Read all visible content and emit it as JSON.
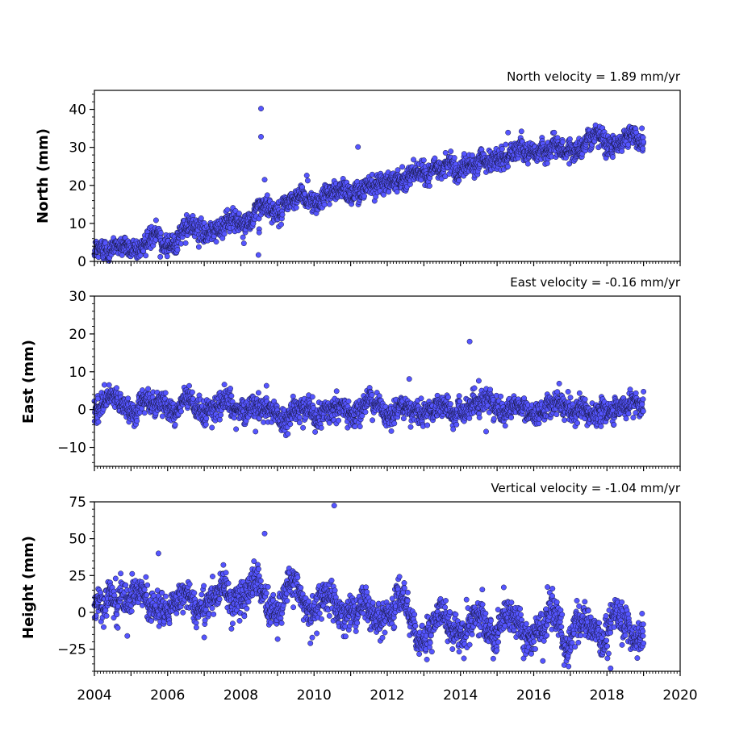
{
  "colors": {
    "marker": "#5555ff",
    "marker_edge": "#15153a"
  },
  "chart_data": [
    {
      "type": "scatter",
      "panel": "north",
      "velocity_label": "North velocity = 1.89 mm/yr",
      "ylabel": "North (mm)",
      "xlim": [
        2004,
        2020
      ],
      "ylim": [
        0,
        45
      ],
      "yticks": [
        0,
        10,
        20,
        30,
        40
      ],
      "xtick_labels_shown": false,
      "x_range": [
        2004.0,
        2019.0
      ],
      "trend": [
        [
          2004.0,
          3
        ],
        [
          2006.0,
          6
        ],
        [
          2008.0,
          11
        ],
        [
          2010.0,
          17
        ],
        [
          2012.0,
          22
        ],
        [
          2014.0,
          25
        ],
        [
          2016.0,
          29
        ],
        [
          2018.0,
          32
        ],
        [
          2019.0,
          33
        ]
      ],
      "noise": 1.3,
      "n_points": 2300,
      "outliers": [
        {
          "x": 2008.55,
          "y": 40.2
        },
        {
          "x": 2008.55,
          "y": 32.8
        },
        {
          "x": 2008.65,
          "y": 21.5
        },
        {
          "x": 2008.5,
          "y": 8.5
        },
        {
          "x": 2008.5,
          "y": 7.6
        },
        {
          "x": 2008.48,
          "y": 1.7
        },
        {
          "x": 2011.2,
          "y": 30.1
        },
        {
          "x": 2015.3,
          "y": 33.9
        },
        {
          "x": 2009.8,
          "y": 22.6
        },
        {
          "x": 2005.8,
          "y": 1.2
        },
        {
          "x": 2014.1,
          "y": 28.3
        },
        {
          "x": 2007.5,
          "y": 6.1
        }
      ]
    },
    {
      "type": "scatter",
      "panel": "east",
      "velocity_label": "East velocity = -0.16 mm/yr",
      "ylabel": "East (mm)",
      "xlim": [
        2004,
        2020
      ],
      "ylim": [
        -15,
        30
      ],
      "yticks": [
        -10,
        0,
        10,
        20,
        30
      ],
      "xtick_labels_shown": false,
      "x_range": [
        2004.0,
        2019.0
      ],
      "trend": [
        [
          2004.0,
          1
        ],
        [
          2006.0,
          1
        ],
        [
          2008.0,
          0
        ],
        [
          2010.0,
          -0.5
        ],
        [
          2012.0,
          0.5
        ],
        [
          2014.0,
          0.5
        ],
        [
          2016.0,
          0.5
        ],
        [
          2018.0,
          0.5
        ],
        [
          2019.0,
          0
        ]
      ],
      "noise": 1.4,
      "n_points": 2300,
      "outliers": [
        {
          "x": 2014.25,
          "y": 18.0
        },
        {
          "x": 2012.6,
          "y": 8.1
        },
        {
          "x": 2014.5,
          "y": 7.6
        },
        {
          "x": 2004.4,
          "y": 6.5
        },
        {
          "x": 2008.7,
          "y": 6.3
        },
        {
          "x": 2008.4,
          "y": -5.8
        },
        {
          "x": 2014.7,
          "y": -5.8
        },
        {
          "x": 2013.8,
          "y": -5.2
        },
        {
          "x": 2009.7,
          "y": -4.8
        }
      ]
    },
    {
      "type": "scatter",
      "panel": "height",
      "velocity_label": "Vertical velocity = -1.04 mm/yr",
      "ylabel": "Height (mm)",
      "xlim": [
        2004,
        2020
      ],
      "ylim": [
        -40,
        75
      ],
      "yticks": [
        -25,
        0,
        25,
        50,
        75
      ],
      "xticks": [
        2004,
        2006,
        2008,
        2010,
        2012,
        2014,
        2016,
        2018,
        2020
      ],
      "xtick_labels_shown": true,
      "x_range": [
        2004.0,
        2019.0
      ],
      "trend": [
        [
          2004.0,
          6
        ],
        [
          2006.0,
          12
        ],
        [
          2007.0,
          11
        ],
        [
          2008.0,
          9
        ],
        [
          2010.0,
          5
        ],
        [
          2012.0,
          -1
        ],
        [
          2014.0,
          -7
        ],
        [
          2016.0,
          -11
        ],
        [
          2018.0,
          -10
        ],
        [
          2019.0,
          -12
        ]
      ],
      "seasonal_amplitude": 8,
      "noise": 5.5,
      "n_points": 2300,
      "outliers": [
        {
          "x": 2010.55,
          "y": 72.5
        },
        {
          "x": 2008.65,
          "y": 53.5
        },
        {
          "x": 2005.75,
          "y": 40.0
        },
        {
          "x": 2018.1,
          "y": -38.0
        },
        {
          "x": 2016.25,
          "y": -33.0
        },
        {
          "x": 2009.9,
          "y": -21.0
        },
        {
          "x": 2007.0,
          "y": -17.0
        },
        {
          "x": 2004.9,
          "y": -16.0
        }
      ]
    }
  ]
}
